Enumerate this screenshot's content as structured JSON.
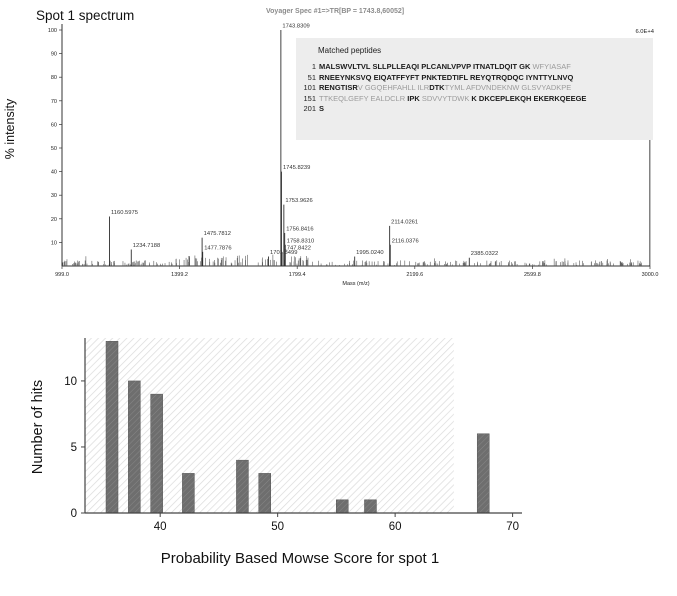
{
  "header": {
    "spot_title": "Spot 1 spectrum"
  },
  "matched_peptides": {
    "title": "Matched peptides",
    "lines": [
      {
        "num": "1",
        "segments": [
          {
            "t": "MALSWVLTVL SLLPLLEAQI PLCANLVPVP ITNATLDQIT GK",
            "m": true
          },
          {
            "t": " WFYIASAF",
            "m": false
          }
        ]
      },
      {
        "num": "51",
        "segments": [
          {
            "t": "RNEEYNKSVQ EIQATFFYFT PNKTEDTIFL REYQTRQDQC IYNTTYLNVQ",
            "m": true
          }
        ]
      },
      {
        "num": "101",
        "segments": [
          {
            "t": "RENGTISR",
            "m": true
          },
          {
            "t": "V GGQEHFAHLL ILR",
            "m": false
          },
          {
            "t": "DTK",
            "m": true
          },
          {
            "t": "TYML AFDVNDEKNW GLSVYADKPE",
            "m": false
          }
        ]
      },
      {
        "num": "151",
        "segments": [
          {
            "t": "TTKEQLGEFY EALDCLR ",
            "m": false
          },
          {
            "t": "IPK ",
            "m": true
          },
          {
            "t": "SDVVYTDWK ",
            "m": false
          },
          {
            "t": "K DKCEPLEKQH EKERKQEEGE",
            "m": true
          }
        ]
      },
      {
        "num": "201",
        "segments": [
          {
            "t": "S",
            "m": true
          }
        ]
      }
    ]
  },
  "chart_data": [
    {
      "type": "line",
      "subtype": "mass_spectrum",
      "title": "Voyager Spec #1=>TR[BP = 1743.8,60052]",
      "corner_label": "6.0E+4",
      "xlabel": "Mass (m/z)",
      "ylabel": "% intensity",
      "xlim": [
        999.0,
        3000.0
      ],
      "ylim": [
        0,
        100
      ],
      "xticks": [
        "999.0",
        "1399.2",
        "1799.4",
        "2199.6",
        "2599.8",
        "3000.0"
      ],
      "yticks": [
        100,
        90,
        80,
        70,
        60,
        50,
        40,
        30,
        20,
        10
      ],
      "peaks": [
        {
          "mz": 1160.5975,
          "intensity": 21,
          "label": "1160.5975"
        },
        {
          "mz": 1234.7188,
          "intensity": 7,
          "label": "1234.7188"
        },
        {
          "mz": 1475.7812,
          "intensity": 12,
          "label": "1475.7812"
        },
        {
          "mz": 1477.7876,
          "intensity": 6,
          "label": "1477.7876"
        },
        {
          "mz": 1701.8499,
          "intensity": 4,
          "label": "1701.8499"
        },
        {
          "mz": 1743.8309,
          "intensity": 100,
          "label": "1743.8309"
        },
        {
          "mz": 1745.8239,
          "intensity": 40,
          "label": "1745.8239"
        },
        {
          "mz": 1747.8422,
          "intensity": 6,
          "label": "1747.8422"
        },
        {
          "mz": 1753.9626,
          "intensity": 26,
          "label": "1753.9626"
        },
        {
          "mz": 1756.8416,
          "intensity": 14,
          "label": "1756.8416"
        },
        {
          "mz": 1758.831,
          "intensity": 9,
          "label": "1758.8310"
        },
        {
          "mz": 1995.024,
          "intensity": 4,
          "label": "1995.0240"
        },
        {
          "mz": 2114.0261,
          "intensity": 17,
          "label": "2114.0261"
        },
        {
          "mz": 2116.0376,
          "intensity": 9,
          "label": "2116.0376"
        },
        {
          "mz": 2385.0322,
          "intensity": 3.5,
          "label": "2385.0322"
        },
        {
          "mz": 2999.5,
          "intensity": 96,
          "label": ""
        }
      ]
    },
    {
      "type": "bar",
      "xlabel": "Probability Based Mowse Score for spot 1",
      "ylabel": "Number of hits",
      "xlim": [
        33.6,
        70.8
      ],
      "ylim": [
        0,
        13.25
      ],
      "xticks": [
        40,
        50,
        60,
        70
      ],
      "yticks": [
        0,
        5,
        10
      ],
      "bars": [
        {
          "score": 35.9,
          "hits": 13
        },
        {
          "score": 37.8,
          "hits": 10
        },
        {
          "score": 39.7,
          "hits": 9
        },
        {
          "score": 42.4,
          "hits": 3
        },
        {
          "score": 47.0,
          "hits": 4
        },
        {
          "score": 48.9,
          "hits": 3
        },
        {
          "score": 55.5,
          "hits": 1
        },
        {
          "score": 57.9,
          "hits": 1
        },
        {
          "score": 67.5,
          "hits": 6
        }
      ],
      "shaded_region": {
        "from": 33.6,
        "to": 65.0
      }
    }
  ]
}
